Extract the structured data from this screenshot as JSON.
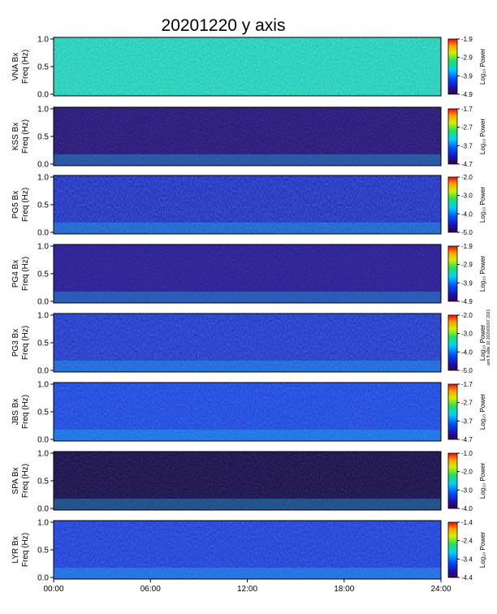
{
  "title": "20201220 y axis",
  "side_note": "anh ft alde 10 2020/01/07 2021",
  "x_ticks": [
    "00:00",
    "06:00",
    "12:00",
    "18:00",
    "24:00"
  ],
  "y_ticks": [
    "0.0",
    "0.5",
    "1.0"
  ],
  "colorbar_label": "Log₁₀ Power",
  "chart_data": [
    {
      "type": "heatmap",
      "station": "VNA Bx",
      "ylabel": "VNA Bx\nFreq (Hz)",
      "x_range": [
        "00:00",
        "24:00"
      ],
      "ylim": [
        0,
        1.0
      ],
      "cbar_ticks": [
        "-1.9",
        "-2.9",
        "-3.9",
        "-4.9"
      ],
      "cbar_range": [
        -4.9,
        -1.9
      ]
    },
    {
      "type": "heatmap",
      "station": "KSS Bx",
      "ylabel": "KSS Bx\nFreq (Hz)",
      "x_range": [
        "00:00",
        "24:00"
      ],
      "ylim": [
        0,
        1.0
      ],
      "cbar_ticks": [
        "-1.7",
        "-2.7",
        "-3.7",
        "-4.7"
      ],
      "cbar_range": [
        -4.7,
        -1.7
      ]
    },
    {
      "type": "heatmap",
      "station": "PG5 Bx",
      "ylabel": "PG5 Bx\nFreq (Hz)",
      "x_range": [
        "00:00",
        "24:00"
      ],
      "ylim": [
        0,
        1.0
      ],
      "cbar_ticks": [
        "-2.0",
        "-3.0",
        "-4.0",
        "-5.0"
      ],
      "cbar_range": [
        -5.0,
        -2.0
      ]
    },
    {
      "type": "heatmap",
      "station": "PG4 Bx",
      "ylabel": "PG4 Bx\nFreq (Hz)",
      "x_range": [
        "00:00",
        "24:00"
      ],
      "ylim": [
        0,
        1.0
      ],
      "cbar_ticks": [
        "-1.9",
        "-2.9",
        "-3.9",
        "-4.9"
      ],
      "cbar_range": [
        -4.9,
        -1.9
      ]
    },
    {
      "type": "heatmap",
      "station": "PG3 Bx",
      "ylabel": "PG3 Bx\nFreq (Hz)",
      "x_range": [
        "00:00",
        "24:00"
      ],
      "ylim": [
        0,
        1.0
      ],
      "cbar_ticks": [
        "-2.0",
        "-3.0",
        "-4.0",
        "-5.0"
      ],
      "cbar_range": [
        -5.0,
        -2.0
      ]
    },
    {
      "type": "heatmap",
      "station": "JBS Bx",
      "ylabel": "JBS Bx\nFreq (Hz)",
      "x_range": [
        "00:00",
        "24:00"
      ],
      "ylim": [
        0,
        1.0
      ],
      "cbar_ticks": [
        "-1.7",
        "-2.7",
        "-3.7",
        "-4.7"
      ],
      "cbar_range": [
        -4.7,
        -1.7
      ]
    },
    {
      "type": "heatmap",
      "station": "SPA Bx",
      "ylabel": "SPA Bx\nFreq (Hz)",
      "x_range": [
        "00:00",
        "24:00"
      ],
      "ylim": [
        0,
        1.0
      ],
      "cbar_ticks": [
        "-1.0",
        "-2.0",
        "-3.0",
        "-4.0"
      ],
      "cbar_range": [
        -4.0,
        -1.0
      ]
    },
    {
      "type": "heatmap",
      "station": "LYR Bx",
      "ylabel": "LYR Bx\nFreq (Hz)",
      "x_range": [
        "00:00",
        "24:00"
      ],
      "ylim": [
        0,
        1.0
      ],
      "cbar_ticks": [
        "-1.4",
        "-2.4",
        "-3.4",
        "-4.4"
      ],
      "cbar_range": [
        -4.4,
        -1.4
      ]
    }
  ]
}
